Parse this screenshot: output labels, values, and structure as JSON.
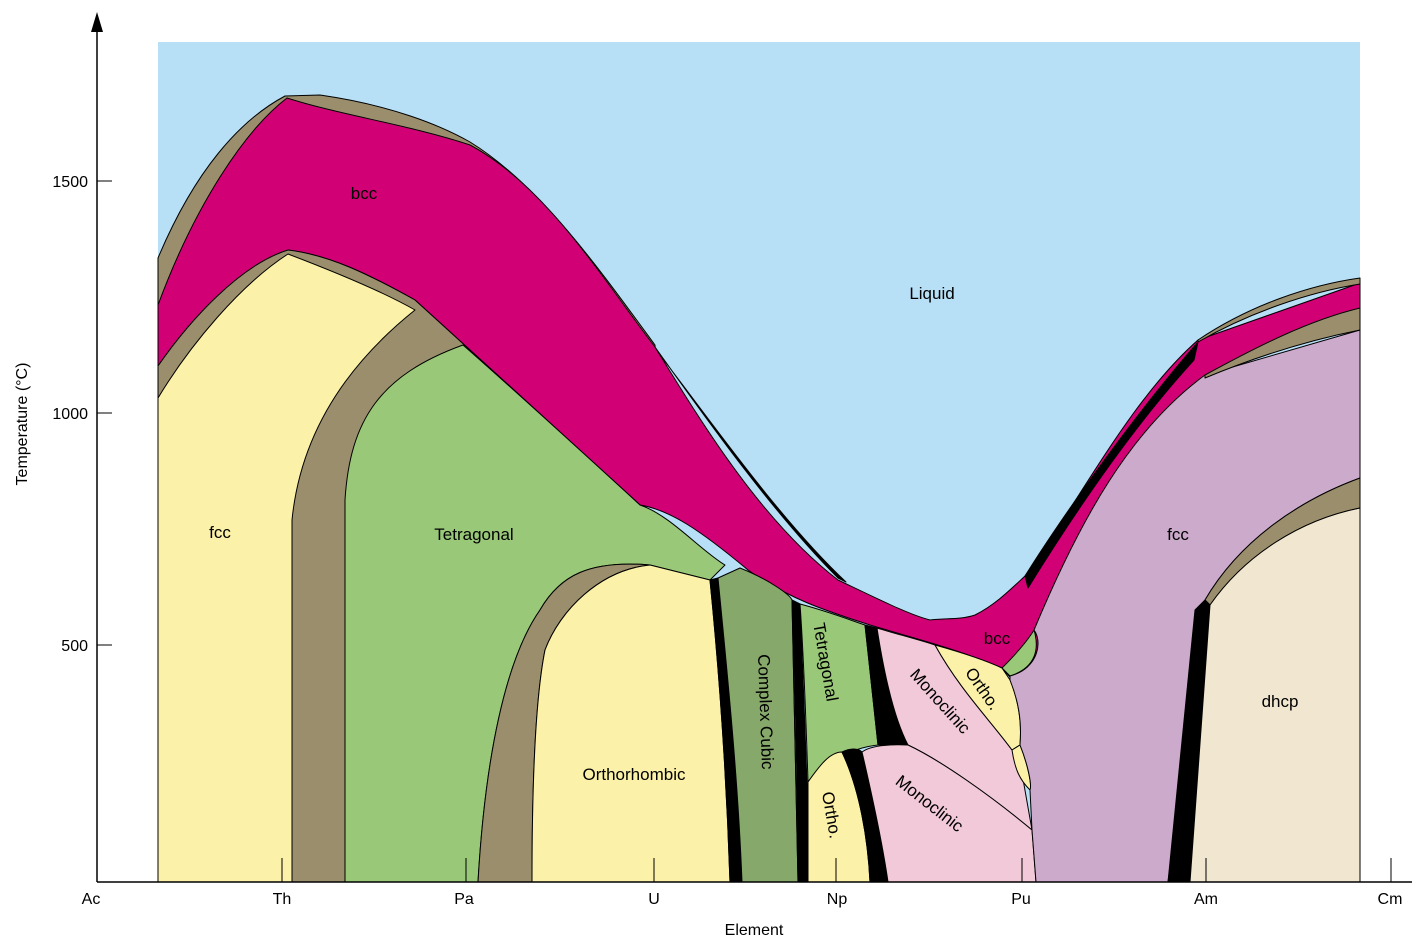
{
  "colors": {
    "liquid": "#b7dff5",
    "bcc": "#d10074",
    "two_phase": "#9a8e6d",
    "fcc_yellow": "#fbf1a8",
    "tetragonal": "#98c878",
    "complex_cubic": "#86a86a",
    "ortho": "#fbf1a8",
    "monoclinic": "#f2c9d8",
    "fcc_purple": "#ccaacb",
    "dhcp": "#f1e6cf",
    "black": "#000000"
  },
  "axes": {
    "x_label": "Element",
    "y_label": "Temperature (°C)",
    "y_ticks": [
      "1500",
      "1000",
      "500"
    ],
    "x_ticks": [
      "Ac",
      "Th",
      "Pa",
      "U",
      "Np",
      "Pu",
      "Am",
      "Cm"
    ]
  },
  "phases": {
    "liquid": "Liquid",
    "bcc_top": "bcc",
    "bcc_pu": "bcc",
    "fcc_left": "fcc",
    "tetragonal_big": "Tetragonal",
    "orthorhombic": "Orthorhombic",
    "complex_cubic": "Complex Cubic",
    "tetragonal_np": "Tetragonal",
    "ortho_np": "Ortho.",
    "monoclinic_upper": "Monoclinic",
    "monoclinic_lower": "Monoclinic",
    "ortho_pu": "Ortho.",
    "fcc_right": "fcc",
    "dhcp": "dhcp"
  }
}
